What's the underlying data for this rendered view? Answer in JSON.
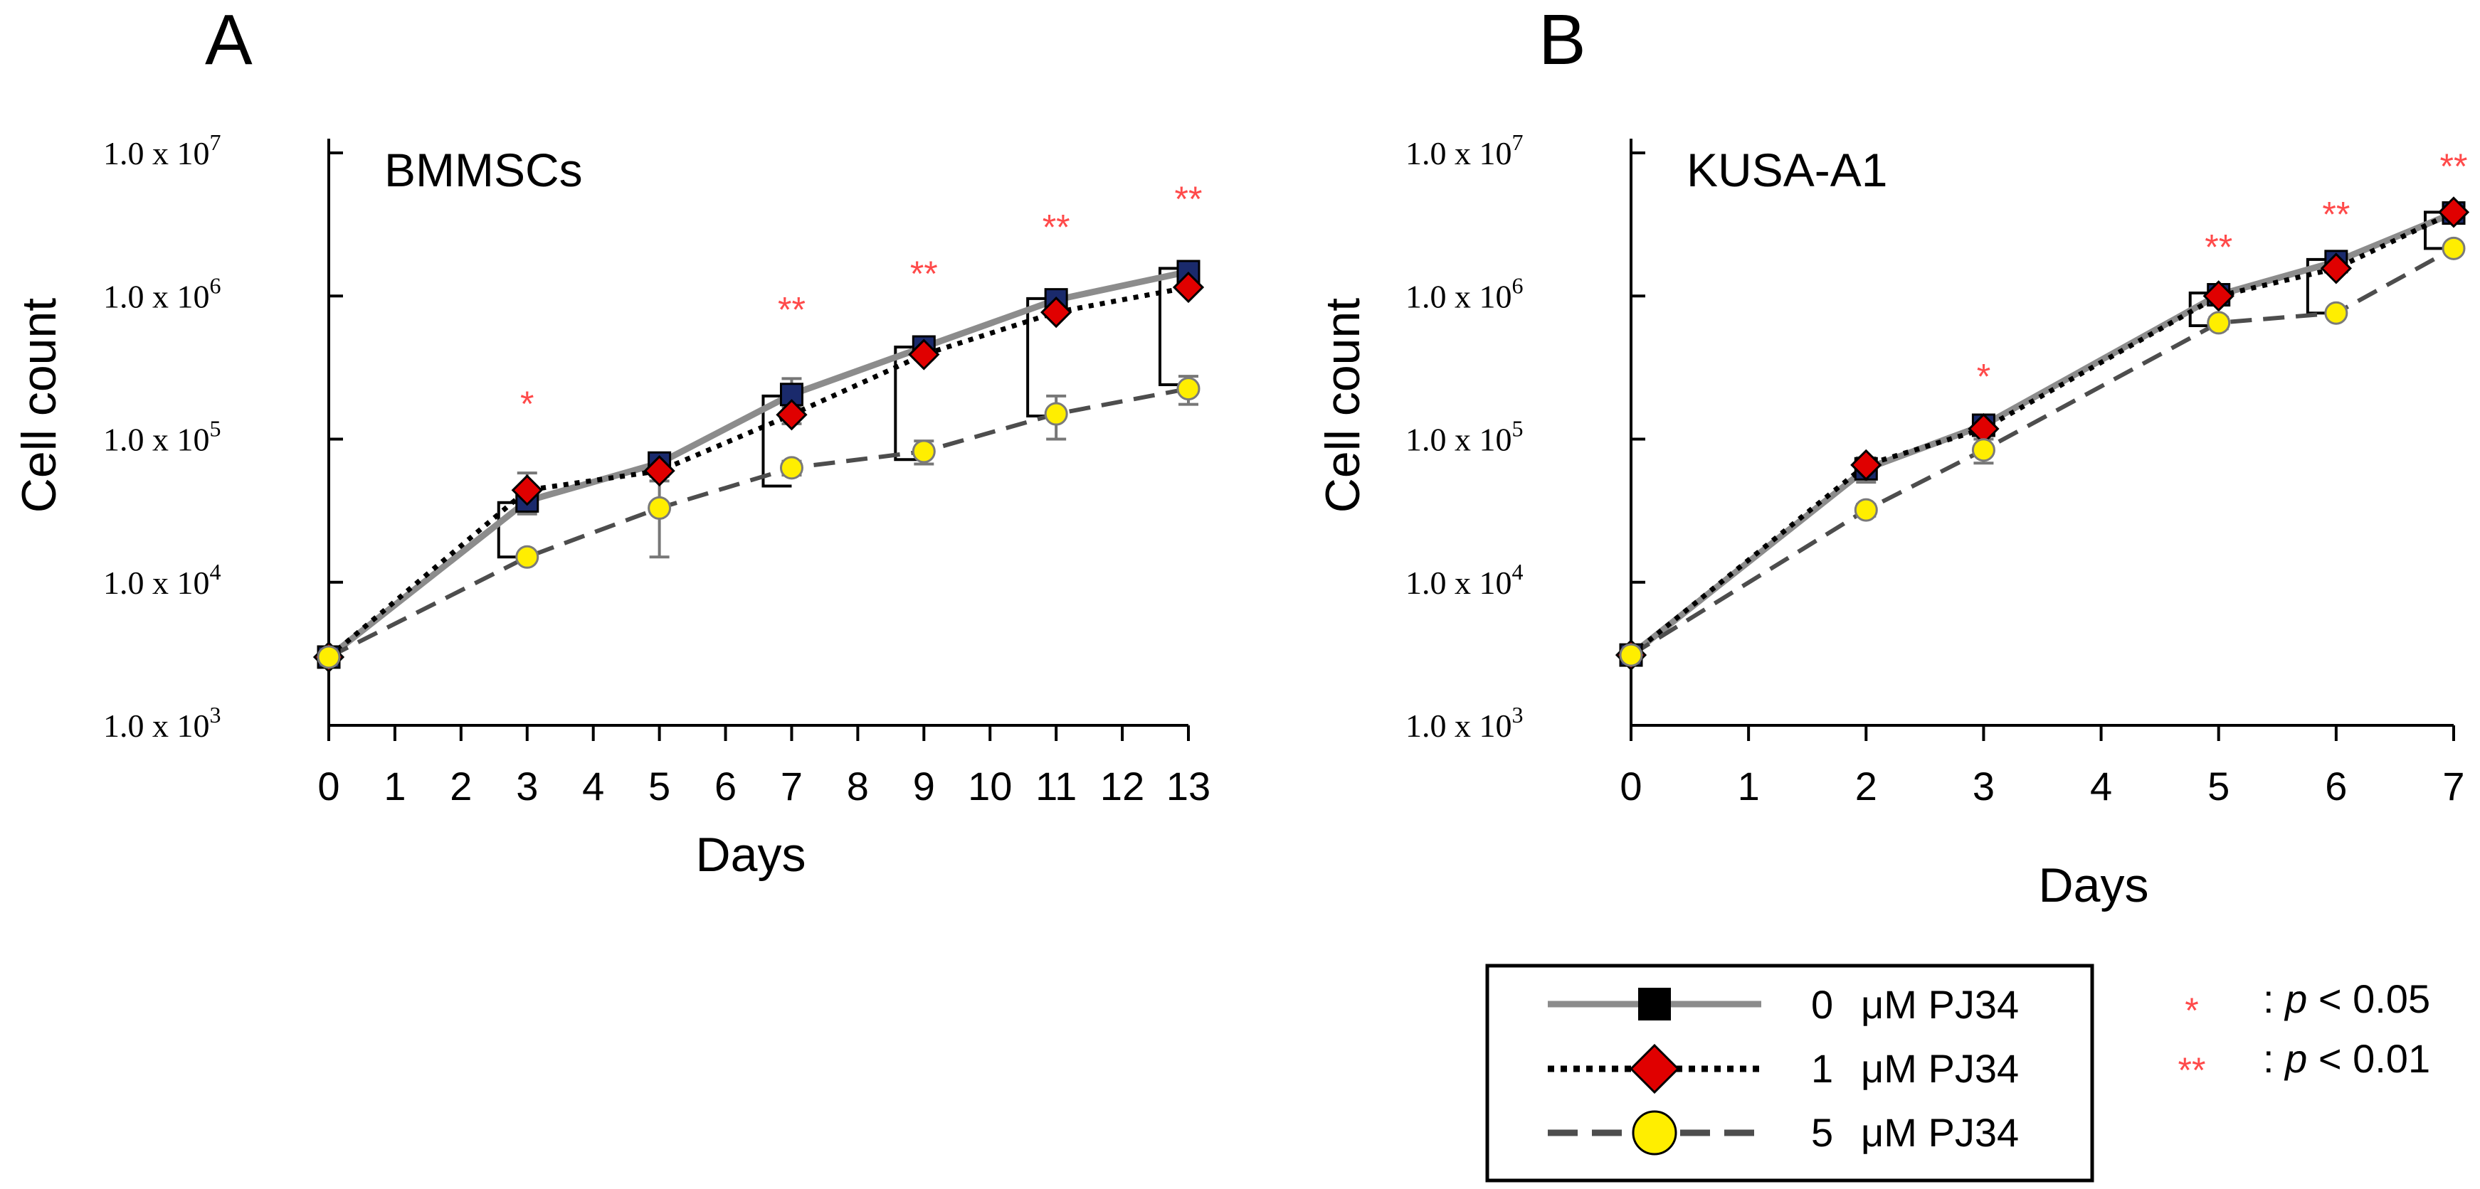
{
  "chart_data": [
    {
      "type": "line",
      "panel": "A",
      "title": "BMMSCs",
      "xlabel": "Days",
      "ylabel": "Cell count",
      "yscale": "log",
      "ylim": [
        1000,
        10000000
      ],
      "xlim": [
        0,
        13
      ],
      "xticks": [
        "0",
        "1",
        "2",
        "3",
        "4",
        "5",
        "6",
        "7",
        "8",
        "9",
        "10",
        "11",
        "12",
        "13"
      ],
      "yticks": [
        {
          "mant": "1.0 x 10",
          "exp": "7"
        },
        {
          "mant": "1.0 x 10",
          "exp": "6"
        },
        {
          "mant": "1.0 x 10",
          "exp": "5"
        },
        {
          "mant": "1.0 x 10",
          "exp": "4"
        },
        {
          "mant": "1.0 x 10",
          "exp": "3"
        }
      ],
      "series": [
        {
          "name": "0 μM PJ34",
          "x": [
            0,
            3,
            5,
            7,
            9,
            11,
            13
          ],
          "values": [
            3000,
            37000,
            68000,
            205000,
            440000,
            940000,
            1480000
          ],
          "err": [
            0,
            3000,
            8000,
            60000,
            30000,
            60000,
            90000
          ]
        },
        {
          "name": "1 μM PJ34",
          "x": [
            0,
            3,
            5,
            7,
            9,
            11,
            13
          ],
          "values": [
            3000,
            44000,
            60000,
            148000,
            390000,
            770000,
            1150000
          ],
          "err": [
            0,
            14000,
            5000,
            20000,
            30000,
            50000,
            70000
          ]
        },
        {
          "name": "5 μM PJ34",
          "x": [
            0,
            3,
            5,
            7,
            9,
            11,
            13
          ],
          "values": [
            3000,
            15000,
            33000,
            63000,
            82000,
            150000,
            225000
          ],
          "err": [
            0,
            1000,
            18000,
            7000,
            15000,
            50000,
            50000
          ]
        }
      ],
      "significance": [
        {
          "x": 3,
          "label": "*"
        },
        {
          "x": 7,
          "label": "**"
        },
        {
          "x": 9,
          "label": "**"
        },
        {
          "x": 11,
          "label": "**"
        },
        {
          "x": 13,
          "label": "**"
        }
      ],
      "brackets": [
        {
          "x": 3,
          "top": 36000,
          "bottom": 15000
        },
        {
          "x": 7,
          "top": 200000,
          "bottom": 47000
        },
        {
          "x": 9,
          "top": 440000,
          "bottom": 72000
        },
        {
          "x": 11,
          "top": 960000,
          "bottom": 145000
        },
        {
          "x": 13,
          "top": 1560000,
          "bottom": 240000
        }
      ]
    },
    {
      "type": "line",
      "panel": "B",
      "title": "KUSA-A1",
      "xlabel": "Days",
      "ylabel": "Cell count",
      "yscale": "log",
      "ylim": [
        1000,
        10000000
      ],
      "xlim": [
        0,
        7
      ],
      "xticks": [
        "0",
        "1",
        "2",
        "3",
        "4",
        "5",
        "6",
        "7"
      ],
      "yticks": [
        {
          "mant": "1.0 x 10",
          "exp": "7"
        },
        {
          "mant": "1.0 x 10",
          "exp": "6"
        },
        {
          "mant": "1.0 x 10",
          "exp": "5"
        },
        {
          "mant": "1.0 x 10",
          "exp": "4"
        },
        {
          "mant": "1.0 x 10",
          "exp": "3"
        }
      ],
      "series": [
        {
          "name": "0 μM PJ34",
          "x": [
            0,
            2,
            3,
            5,
            6,
            7
          ],
          "values": [
            3100,
            62000,
            125000,
            1020000,
            1740000,
            3800000
          ],
          "err": [
            0,
            12000,
            10000,
            60000,
            90000,
            100000
          ]
        },
        {
          "name": "1 μM PJ34",
          "x": [
            0,
            2,
            3,
            5,
            6,
            7
          ],
          "values": [
            3100,
            66000,
            118000,
            1000000,
            1560000,
            3850000
          ],
          "err": [
            0,
            8000,
            8000,
            60000,
            80000,
            100000
          ]
        },
        {
          "name": "5 μM PJ34",
          "x": [
            0,
            2,
            3,
            5,
            6,
            7
          ],
          "values": [
            3100,
            32000,
            84000,
            650000,
            760000,
            2150000
          ],
          "err": [
            0,
            3000,
            16000,
            60000,
            50000,
            100000
          ]
        }
      ],
      "significance": [
        {
          "x": 3,
          "label": "*"
        },
        {
          "x": 5,
          "label": "**"
        },
        {
          "x": 6,
          "label": "**"
        },
        {
          "x": 7,
          "label": "**"
        }
      ],
      "brackets": [
        {
          "x": 5,
          "top": 1050000,
          "bottom": 620000
        },
        {
          "x": 6,
          "top": 1800000,
          "bottom": 760000
        },
        {
          "x": 7,
          "top": 3850000,
          "bottom": 2150000
        }
      ]
    }
  ],
  "legend": {
    "items": [
      {
        "conc": "0",
        "unit": "μM PJ34"
      },
      {
        "conc": "1",
        "unit": "μM PJ34"
      },
      {
        "conc": "5",
        "unit": "μM PJ34"
      }
    ],
    "significance": [
      {
        "symbol": "*",
        "p_label": "p",
        "op": "< 0.05"
      },
      {
        "symbol": "**",
        "p_label": "p",
        "op": "< 0.01"
      }
    ]
  },
  "colors": {
    "sig": "#ff4a4a",
    "series0_line": "#8c8c8c",
    "series0_marker": "#1a2a6c",
    "series1_line": "#000000",
    "series1_marker": "#e00000",
    "series2_line": "#4d4d4d",
    "series2_marker": "#ffee00"
  }
}
